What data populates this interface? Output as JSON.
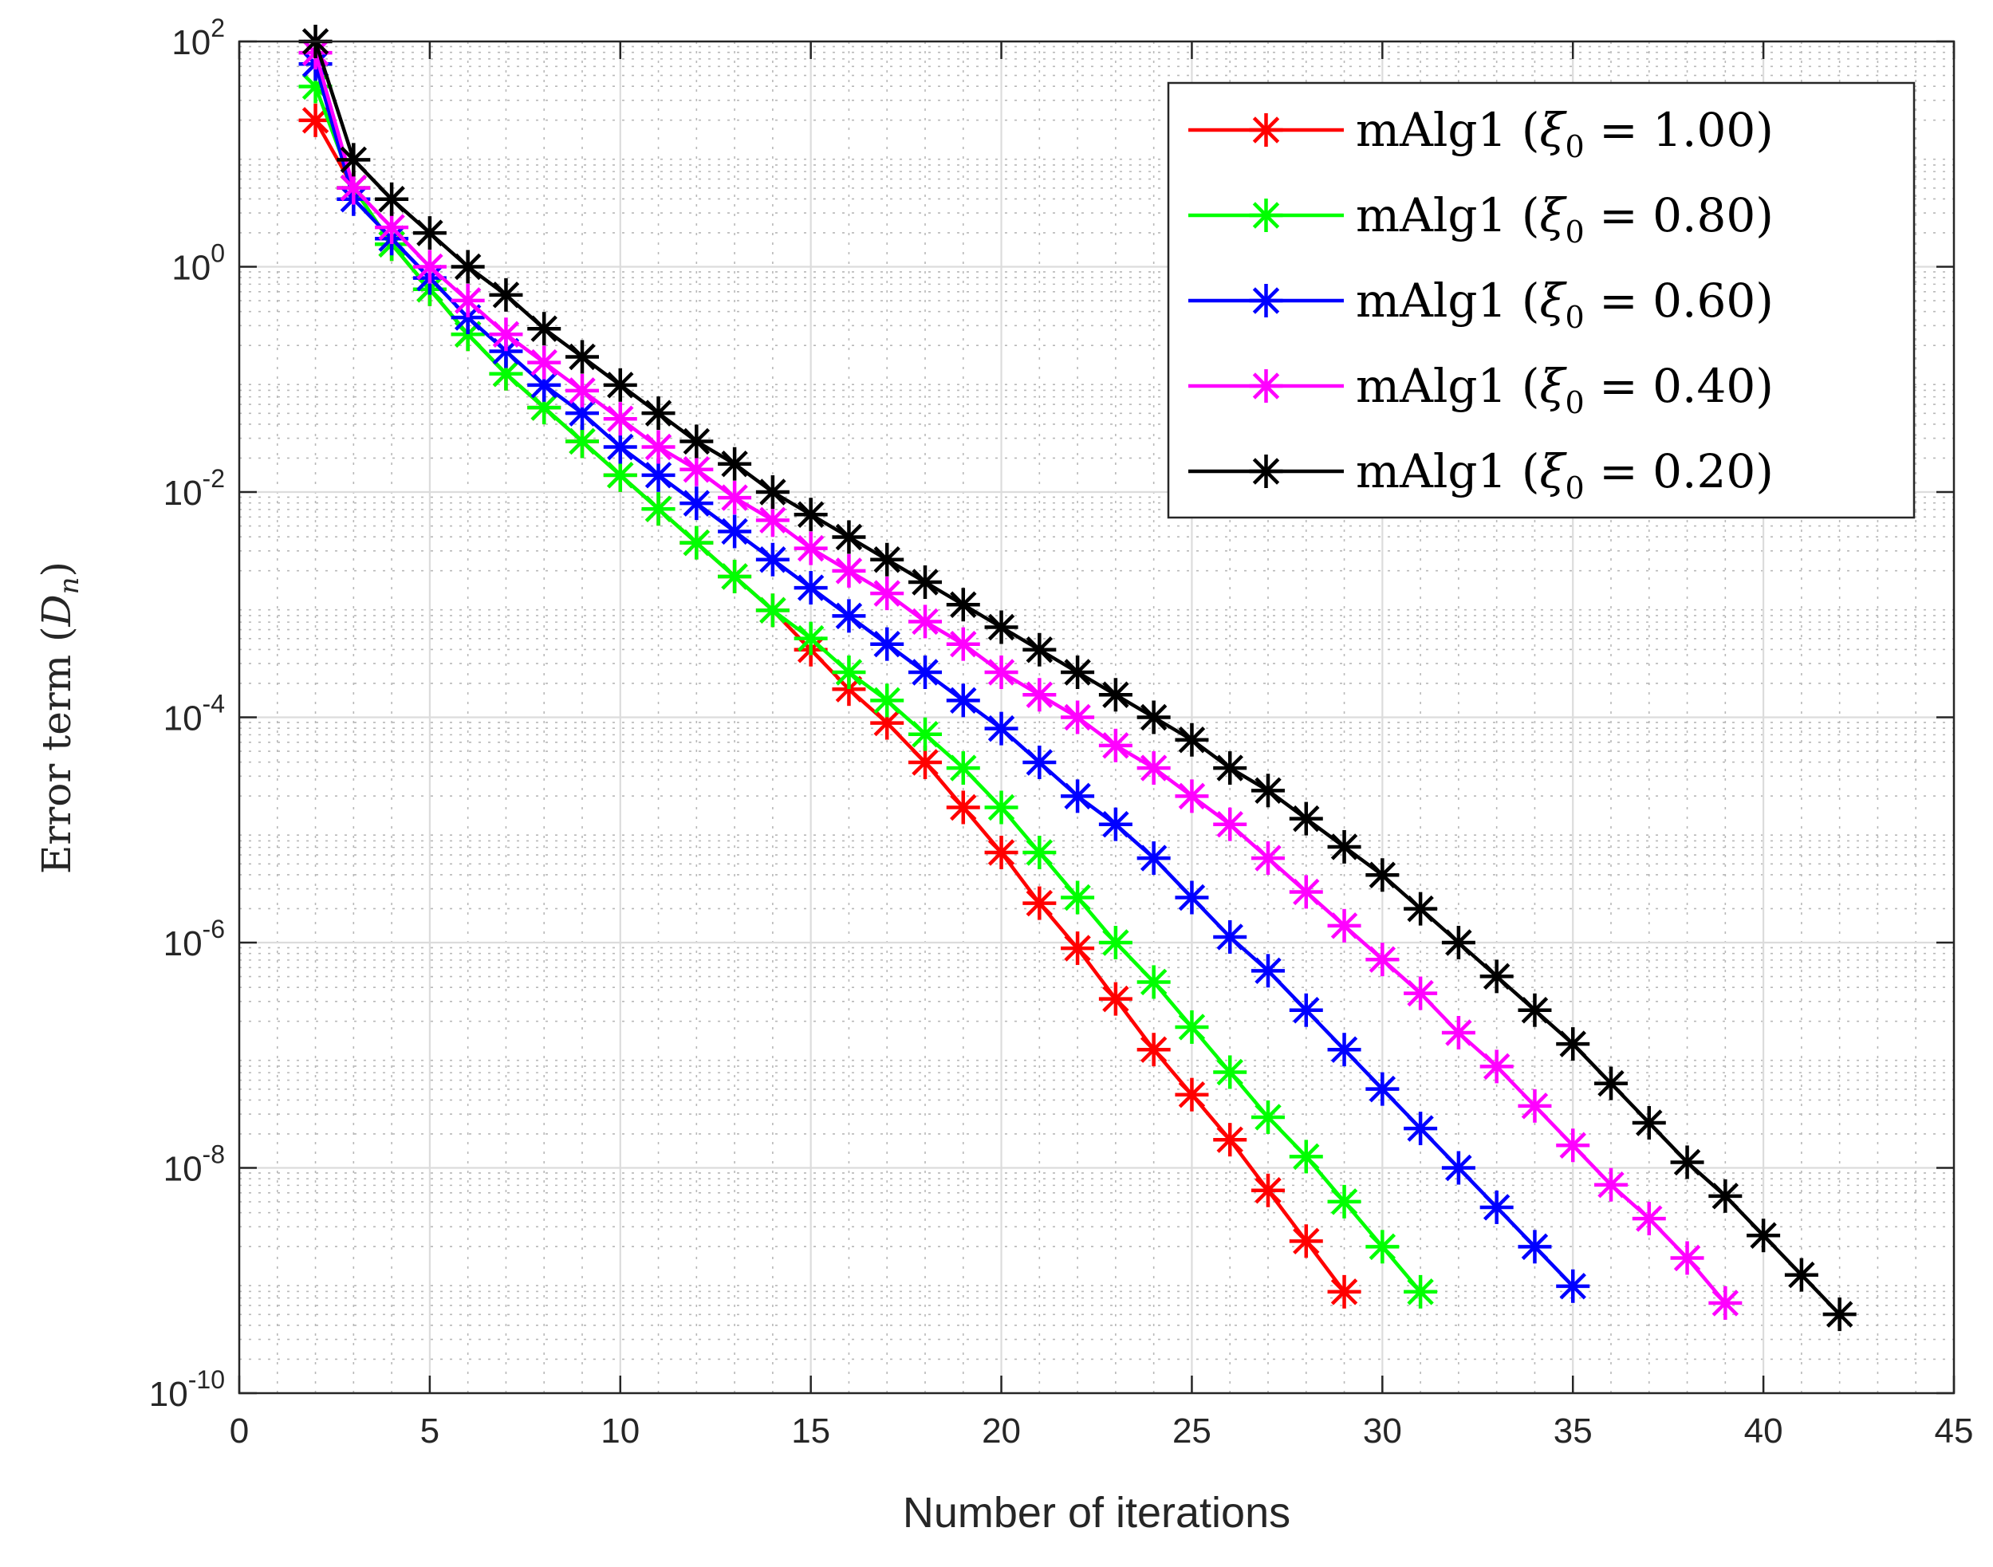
{
  "chart_data": {
    "type": "line",
    "title": "",
    "xlabel": "Number of iterations",
    "ylabel": "Error term (Dn)",
    "ylabel_parts": {
      "prefix": "Error term (",
      "var": "D",
      "sub": "n",
      "suffix": ")"
    },
    "xlim": [
      0,
      45
    ],
    "ylim_exponents": [
      -10,
      2
    ],
    "yscale": "log",
    "grid": true,
    "legend_position": "top-right",
    "x_ticks": [
      0,
      5,
      10,
      15,
      20,
      25,
      30,
      35,
      40,
      45
    ],
    "y_ticks": [
      {
        "base": "10",
        "exp": "2"
      },
      {
        "base": "10",
        "exp": "0"
      },
      {
        "base": "10",
        "exp": "-2"
      },
      {
        "base": "10",
        "exp": "-4"
      },
      {
        "base": "10",
        "exp": "-6"
      },
      {
        "base": "10",
        "exp": "-8"
      },
      {
        "base": "10",
        "exp": "-10"
      }
    ],
    "series": [
      {
        "name": "mAlg1 (ξ0 = 1.00)",
        "legend": {
          "prefix": "mAlg1 (",
          "var": "ξ",
          "sub": "0",
          "suffix": " = 1.00)"
        },
        "color": "#ff0000",
        "x": [
          2,
          3,
          4,
          5,
          6,
          7,
          8,
          9,
          10,
          11,
          12,
          13,
          14,
          15,
          16,
          17,
          18,
          19,
          20,
          21,
          22,
          23,
          24,
          25,
          26,
          27,
          28,
          29
        ],
        "log10_y": [
          1.3,
          0.7,
          0.2,
          -0.2,
          -0.6,
          -0.95,
          -1.25,
          -1.55,
          -1.85,
          -2.15,
          -2.45,
          -2.75,
          -3.05,
          -3.4,
          -3.75,
          -4.05,
          -4.4,
          -4.8,
          -5.2,
          -5.65,
          -6.05,
          -6.5,
          -6.95,
          -7.35,
          -7.75,
          -8.2,
          -8.65,
          -9.1
        ]
      },
      {
        "name": "mAlg1 (ξ0 = 0.80)",
        "legend": {
          "prefix": "mAlg1 (",
          "var": "ξ",
          "sub": "0",
          "suffix": " = 0.80)"
        },
        "color": "#00ff00",
        "x": [
          2,
          3,
          4,
          5,
          6,
          7,
          8,
          9,
          10,
          11,
          12,
          13,
          14,
          15,
          16,
          17,
          18,
          19,
          20,
          21,
          22,
          23,
          24,
          25,
          26,
          27,
          28,
          29,
          30,
          31
        ],
        "log10_y": [
          1.6,
          0.7,
          0.2,
          -0.2,
          -0.6,
          -0.95,
          -1.25,
          -1.55,
          -1.85,
          -2.15,
          -2.45,
          -2.75,
          -3.05,
          -3.3,
          -3.6,
          -3.85,
          -4.15,
          -4.45,
          -4.8,
          -5.2,
          -5.6,
          -6.0,
          -6.35,
          -6.75,
          -7.15,
          -7.55,
          -7.9,
          -8.3,
          -8.7,
          -9.1
        ]
      },
      {
        "name": "mAlg1 (ξ0 = 0.60)",
        "legend": {
          "prefix": "mAlg1 (",
          "var": "ξ",
          "sub": "0",
          "suffix": " = 0.60)"
        },
        "color": "#0000ff",
        "x": [
          2,
          3,
          4,
          5,
          6,
          7,
          8,
          9,
          10,
          11,
          12,
          13,
          14,
          15,
          16,
          17,
          18,
          19,
          20,
          21,
          22,
          23,
          24,
          25,
          26,
          27,
          28,
          29,
          30,
          31,
          32,
          33,
          34,
          35
        ],
        "log10_y": [
          1.8,
          0.6,
          0.25,
          -0.1,
          -0.45,
          -0.75,
          -1.05,
          -1.3,
          -1.6,
          -1.85,
          -2.1,
          -2.35,
          -2.6,
          -2.85,
          -3.1,
          -3.35,
          -3.6,
          -3.85,
          -4.1,
          -4.4,
          -4.7,
          -4.95,
          -5.25,
          -5.6,
          -5.95,
          -6.25,
          -6.6,
          -6.95,
          -7.3,
          -7.65,
          -8.0,
          -8.35,
          -8.7,
          -9.05
        ]
      },
      {
        "name": "mAlg1 (ξ0 = 0.40)",
        "legend": {
          "prefix": "mAlg1 (",
          "var": "ξ",
          "sub": "0",
          "suffix": " = 0.40)"
        },
        "color": "#ff00ff",
        "x": [
          2,
          3,
          4,
          5,
          6,
          7,
          8,
          9,
          10,
          11,
          12,
          13,
          14,
          15,
          16,
          17,
          18,
          19,
          20,
          21,
          22,
          23,
          24,
          25,
          26,
          27,
          28,
          29,
          30,
          31,
          32,
          33,
          34,
          35,
          36,
          37,
          38,
          39
        ],
        "log10_y": [
          1.9,
          0.7,
          0.35,
          0.0,
          -0.3,
          -0.6,
          -0.85,
          -1.1,
          -1.35,
          -1.6,
          -1.8,
          -2.05,
          -2.25,
          -2.5,
          -2.7,
          -2.9,
          -3.15,
          -3.35,
          -3.6,
          -3.8,
          -4.0,
          -4.25,
          -4.45,
          -4.7,
          -4.95,
          -5.25,
          -5.55,
          -5.85,
          -6.15,
          -6.45,
          -6.8,
          -7.1,
          -7.45,
          -7.8,
          -8.15,
          -8.45,
          -8.8,
          -9.2
        ]
      },
      {
        "name": "mAlg1 (ξ0 = 0.20)",
        "legend": {
          "prefix": "mAlg1 (",
          "var": "ξ",
          "sub": "0",
          "suffix": " = 0.20)"
        },
        "color": "#000000",
        "x": [
          2,
          3,
          4,
          5,
          6,
          7,
          8,
          9,
          10,
          11,
          12,
          13,
          14,
          15,
          16,
          17,
          18,
          19,
          20,
          21,
          22,
          23,
          24,
          25,
          26,
          27,
          28,
          29,
          30,
          31,
          32,
          33,
          34,
          35,
          36,
          37,
          38,
          39,
          40,
          41,
          42
        ],
        "log10_y": [
          2.0,
          0.95,
          0.6,
          0.3,
          0.0,
          -0.25,
          -0.55,
          -0.8,
          -1.05,
          -1.3,
          -1.55,
          -1.75,
          -2.0,
          -2.2,
          -2.4,
          -2.6,
          -2.8,
          -3.0,
          -3.2,
          -3.4,
          -3.6,
          -3.8,
          -4.0,
          -4.2,
          -4.45,
          -4.65,
          -4.9,
          -5.15,
          -5.4,
          -5.7,
          -6.0,
          -6.3,
          -6.6,
          -6.9,
          -7.25,
          -7.6,
          -7.95,
          -8.25,
          -8.6,
          -8.95,
          -9.3
        ]
      }
    ]
  }
}
